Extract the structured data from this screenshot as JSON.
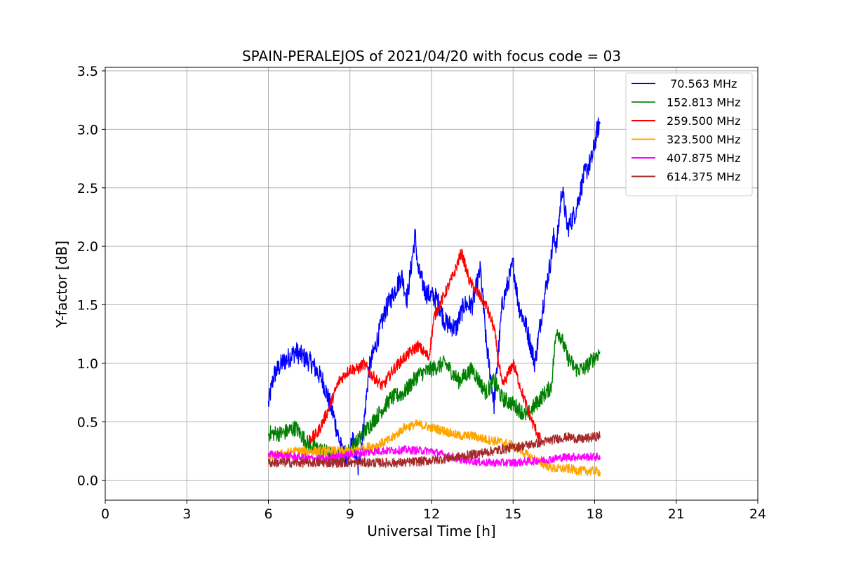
{
  "chart_data": {
    "type": "line",
    "title": "SPAIN-PERALEJOS of 2021/04/20 with focus code = 03",
    "xlabel": "Universal Time [h]",
    "ylabel": "Y-factor [dB]",
    "xlim": [
      0,
      24
    ],
    "ylim": [
      -0.17,
      3.53
    ],
    "xticks": [
      0,
      3,
      6,
      9,
      12,
      15,
      18,
      21,
      24
    ],
    "yticks": [
      0.0,
      0.5,
      1.0,
      1.5,
      2.0,
      2.5,
      3.0,
      3.5
    ],
    "xtick_labels": [
      "0",
      "3",
      "6",
      "9",
      "12",
      "15",
      "18",
      "21",
      "24"
    ],
    "ytick_labels": [
      "0.0",
      "0.5",
      "1.0",
      "1.5",
      "2.0",
      "2.5",
      "3.0",
      "3.5"
    ],
    "grid": true,
    "legend_position": "top-right",
    "series": [
      {
        "name": " 70.563 MHz",
        "color": "#0000ff",
        "noise": 0.09,
        "x": [
          6.0,
          6.2,
          6.5,
          7.0,
          7.3,
          7.6,
          8.0,
          8.4,
          8.7,
          8.9,
          9.1,
          9.3,
          9.5,
          9.7,
          10.0,
          10.3,
          10.6,
          10.9,
          11.1,
          11.4,
          11.5,
          11.8,
          12.2,
          12.5,
          12.9,
          13.2,
          13.5,
          13.8,
          14.0,
          14.3,
          14.6,
          15.0,
          15.2,
          15.5,
          15.8,
          16.1,
          16.4,
          16.5,
          16.6,
          16.8,
          17.0,
          17.3,
          17.6,
          17.9,
          18.1,
          18.2
        ],
        "y": [
          0.65,
          0.9,
          1.0,
          1.1,
          1.05,
          1.0,
          0.85,
          0.55,
          0.25,
          0.15,
          0.35,
          0.1,
          0.45,
          0.95,
          1.2,
          1.45,
          1.6,
          1.75,
          1.55,
          2.1,
          1.8,
          1.6,
          1.55,
          1.35,
          1.3,
          1.5,
          1.5,
          1.8,
          1.2,
          0.65,
          1.5,
          1.85,
          1.5,
          1.3,
          1.0,
          1.5,
          1.9,
          2.1,
          2.0,
          2.5,
          2.15,
          2.3,
          2.6,
          2.75,
          3.0,
          3.05
        ]
      },
      {
        "name": "152.813 MHz",
        "color": "#008000",
        "noise": 0.07,
        "x": [
          6.0,
          6.5,
          7.0,
          7.5,
          8.0,
          8.5,
          9.0,
          9.5,
          10.0,
          10.5,
          11.0,
          11.5,
          12.0,
          12.5,
          13.0,
          13.5,
          14.0,
          14.3,
          14.6,
          15.0,
          15.5,
          16.0,
          16.4,
          16.6,
          16.8,
          17.0,
          17.3,
          17.6,
          18.0,
          18.2
        ],
        "y": [
          0.4,
          0.4,
          0.45,
          0.3,
          0.25,
          0.2,
          0.25,
          0.4,
          0.55,
          0.7,
          0.75,
          0.9,
          0.95,
          1.0,
          0.85,
          0.95,
          0.75,
          0.85,
          0.7,
          0.65,
          0.55,
          0.7,
          0.8,
          1.3,
          1.2,
          1.05,
          0.95,
          0.95,
          1.05,
          1.1
        ]
      },
      {
        "name": "259.500 MHz",
        "color": "#ff0000",
        "noise": 0.05,
        "x": [
          7.5,
          7.8,
          8.2,
          8.6,
          9.0,
          9.3,
          9.5,
          9.8,
          10.2,
          10.6,
          11.0,
          11.5,
          11.9,
          12.1,
          12.4,
          12.8,
          13.1,
          13.4,
          13.7,
          14.0,
          14.3,
          14.6,
          15.0,
          15.4,
          15.7,
          16.0
        ],
        "y": [
          0.35,
          0.4,
          0.6,
          0.85,
          0.95,
          0.95,
          1.0,
          0.9,
          0.8,
          0.95,
          1.05,
          1.15,
          1.05,
          1.4,
          1.55,
          1.75,
          1.95,
          1.7,
          1.6,
          1.5,
          1.3,
          0.8,
          1.0,
          0.7,
          0.5,
          0.35
        ]
      },
      {
        "name": "323.500 MHz",
        "color": "#ffa500",
        "noise": 0.04,
        "x": [
          6.0,
          7.0,
          8.0,
          9.0,
          10.0,
          10.5,
          11.0,
          11.5,
          12.0,
          12.5,
          13.0,
          13.5,
          14.0,
          14.5,
          15.0,
          15.5,
          16.0,
          16.5,
          17.0,
          17.5,
          18.0,
          18.2
        ],
        "y": [
          0.2,
          0.25,
          0.25,
          0.25,
          0.3,
          0.35,
          0.45,
          0.48,
          0.45,
          0.42,
          0.38,
          0.38,
          0.35,
          0.33,
          0.3,
          0.22,
          0.15,
          0.1,
          0.1,
          0.08,
          0.08,
          0.07
        ]
      },
      {
        "name": "407.875 MHz",
        "color": "#ff00ff",
        "noise": 0.035,
        "x": [
          6.0,
          7.0,
          8.0,
          9.0,
          10.0,
          11.0,
          12.0,
          13.0,
          14.0,
          15.0,
          16.0,
          17.0,
          18.0,
          18.2
        ],
        "y": [
          0.22,
          0.2,
          0.18,
          0.22,
          0.25,
          0.26,
          0.25,
          0.18,
          0.15,
          0.15,
          0.17,
          0.2,
          0.2,
          0.2
        ]
      },
      {
        "name": "614.375 MHz",
        "color": "#a52a2a",
        "noise": 0.04,
        "x": [
          6.0,
          7.0,
          8.0,
          9.0,
          10.0,
          11.0,
          12.0,
          13.0,
          14.0,
          15.0,
          16.0,
          16.5,
          17.0,
          17.5,
          18.0,
          18.2
        ],
        "y": [
          0.15,
          0.15,
          0.15,
          0.15,
          0.15,
          0.15,
          0.17,
          0.2,
          0.24,
          0.28,
          0.32,
          0.35,
          0.37,
          0.35,
          0.37,
          0.38
        ]
      }
    ]
  }
}
